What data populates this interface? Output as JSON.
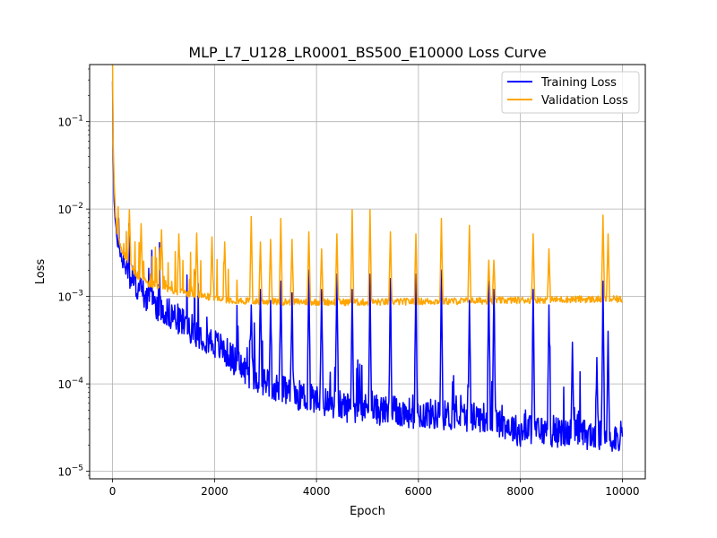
{
  "chart_data": {
    "type": "line",
    "title": "MLP_L7_U128_LR0001_BS500_E10000 Loss Curve",
    "xlabel": "Epoch",
    "ylabel": "Loss",
    "xlim": [
      -450,
      10450
    ],
    "ylim": [
      8.2e-06,
      0.45
    ],
    "yscale": "log",
    "grid": true,
    "legend_loc": "upper right",
    "x_ticks": [
      0,
      2000,
      4000,
      6000,
      8000,
      10000
    ],
    "x_tick_labels": [
      "0",
      "2000",
      "4000",
      "6000",
      "8000",
      "10000"
    ],
    "y_ticks": [
      1e-05,
      0.0001,
      0.001,
      0.01,
      0.1
    ],
    "y_tick_labels": [
      {
        "base": "10",
        "exp": "−5"
      },
      {
        "base": "10",
        "exp": "−4"
      },
      {
        "base": "10",
        "exp": "−3"
      },
      {
        "base": "10",
        "exp": "−2"
      },
      {
        "base": "10",
        "exp": "−1"
      }
    ],
    "series": [
      {
        "name": "Training Loss",
        "color": "#0000ff",
        "x": [
          0,
          10,
          30,
          60,
          100,
          150,
          200,
          300,
          400,
          500,
          600,
          700,
          800,
          900,
          1000,
          1200,
          1400,
          1600,
          1800,
          2000,
          2200,
          2400,
          2600,
          2800,
          3000,
          3200,
          3400,
          3600,
          3800,
          4000,
          4300,
          4600,
          5000,
          5400,
          5800,
          6200,
          6600,
          7000,
          7400,
          7800,
          8000,
          8200,
          8600,
          9000,
          9400,
          9800,
          10000
        ],
        "y": [
          0.3,
          0.05,
          0.012,
          0.006,
          0.004,
          0.003,
          0.0025,
          0.0018,
          0.0014,
          0.0012,
          0.001,
          0.0009,
          0.0008,
          0.00072,
          0.00065,
          0.00055,
          0.00045,
          0.00038,
          0.00032,
          0.00027,
          0.00022,
          0.00017,
          0.00013,
          0.00011,
          0.0001,
          8.5e-05,
          7.5e-05,
          7e-05,
          6.5e-05,
          6e-05,
          5.5e-05,
          5e-05,
          4.8e-05,
          4.5e-05,
          4.3e-05,
          4.2e-05,
          4e-05,
          3.9e-05,
          3.8e-05,
          3e-05,
          2.6e-05,
          2.8e-05,
          2.6e-05,
          2.5e-05,
          2.4e-05,
          2.3e-05,
          2.3e-05
        ],
        "spikes": [
          {
            "x": 2720,
            "y": 0.0008
          },
          {
            "x": 2900,
            "y": 0.0012
          },
          {
            "x": 3100,
            "y": 0.0009
          },
          {
            "x": 3300,
            "y": 0.0015
          },
          {
            "x": 3520,
            "y": 0.0011
          },
          {
            "x": 3850,
            "y": 0.002
          },
          {
            "x": 4100,
            "y": 0.0012
          },
          {
            "x": 4400,
            "y": 0.0018
          },
          {
            "x": 4700,
            "y": 0.0012
          },
          {
            "x": 5050,
            "y": 0.0018
          },
          {
            "x": 5450,
            "y": 0.0016
          },
          {
            "x": 5950,
            "y": 0.0018
          },
          {
            "x": 6450,
            "y": 0.002
          },
          {
            "x": 7000,
            "y": 0.0009
          },
          {
            "x": 7380,
            "y": 0.0015
          },
          {
            "x": 7480,
            "y": 0.0012
          },
          {
            "x": 8250,
            "y": 0.0012
          },
          {
            "x": 8560,
            "y": 0.0008
          },
          {
            "x": 9020,
            "y": 0.0003
          },
          {
            "x": 9500,
            "y": 0.0002
          },
          {
            "x": 9620,
            "y": 0.0015
          },
          {
            "x": 9720,
            "y": 0.0004
          }
        ]
      },
      {
        "name": "Validation Loss",
        "color": "#ffa500",
        "x": [
          0,
          10,
          30,
          60,
          100,
          150,
          200,
          300,
          400,
          500,
          600,
          700,
          800,
          900,
          1000,
          1200,
          1400,
          1600,
          1800,
          2000,
          2200,
          2400,
          2600,
          2800,
          3000,
          3500,
          4000,
          5000,
          6000,
          7000,
          8000,
          9000,
          10000
        ],
        "y": [
          0.25,
          0.06,
          0.02,
          0.008,
          0.005,
          0.004,
          0.0032,
          0.0025,
          0.002,
          0.0017,
          0.0015,
          0.0014,
          0.00135,
          0.0013,
          0.00125,
          0.00115,
          0.0011,
          0.00105,
          0.001,
          0.00095,
          0.00092,
          0.0009,
          0.00088,
          0.00087,
          0.00087,
          0.00086,
          0.00086,
          0.00085,
          0.00087,
          0.00088,
          0.0009,
          0.00092,
          0.00092
        ],
        "spikes": [
          {
            "x": 330,
            "y": 0.0098
          },
          {
            "x": 560,
            "y": 0.0068
          },
          {
            "x": 960,
            "y": 0.0058
          },
          {
            "x": 1300,
            "y": 0.0052
          },
          {
            "x": 1650,
            "y": 0.0053
          },
          {
            "x": 1950,
            "y": 0.0048
          },
          {
            "x": 2200,
            "y": 0.0042
          },
          {
            "x": 2720,
            "y": 0.0082
          },
          {
            "x": 2900,
            "y": 0.0042
          },
          {
            "x": 3100,
            "y": 0.0045
          },
          {
            "x": 3300,
            "y": 0.0078
          },
          {
            "x": 3520,
            "y": 0.0045
          },
          {
            "x": 3850,
            "y": 0.0055
          },
          {
            "x": 4100,
            "y": 0.0035
          },
          {
            "x": 4400,
            "y": 0.0052
          },
          {
            "x": 4700,
            "y": 0.0098
          },
          {
            "x": 5050,
            "y": 0.0098
          },
          {
            "x": 5450,
            "y": 0.0055
          },
          {
            "x": 5950,
            "y": 0.0052
          },
          {
            "x": 6450,
            "y": 0.0078
          },
          {
            "x": 7000,
            "y": 0.0065
          },
          {
            "x": 7380,
            "y": 0.0026
          },
          {
            "x": 7480,
            "y": 0.0026
          },
          {
            "x": 8250,
            "y": 0.0052
          },
          {
            "x": 8560,
            "y": 0.0035
          },
          {
            "x": 9620,
            "y": 0.0085
          },
          {
            "x": 9720,
            "y": 0.0052
          }
        ]
      }
    ]
  }
}
